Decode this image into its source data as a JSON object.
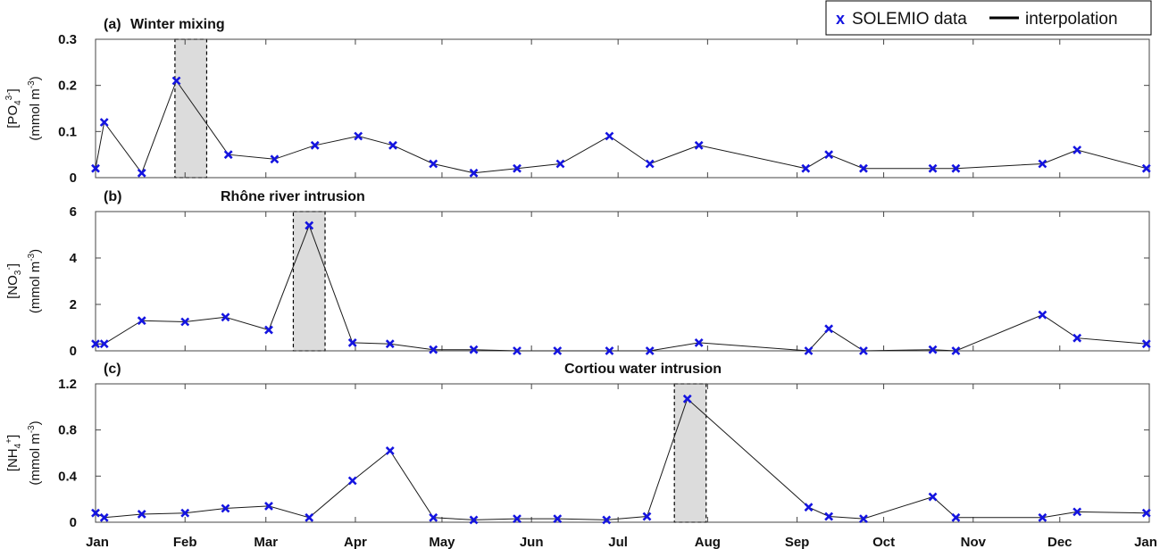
{
  "legend": {
    "marker_label": "x",
    "data_label": "SOLEMIO data",
    "line_label": "interpolation",
    "marker_color": "#1414e0",
    "line_color": "#000000"
  },
  "chart_data": [
    {
      "type": "line",
      "panel": "(a)",
      "title": "Winter mixing",
      "ylabel_main": "[PO",
      "ylabel_sub": "4",
      "ylabel_sup": "3-",
      "ylabel_close": "]",
      "ylabel_unit": "(mmol m",
      "ylabel_unit_sup": "-3",
      "ylabel_unit_close": ")",
      "ylim": [
        0,
        0.3
      ],
      "yticks": [
        0,
        0.1,
        0.2,
        0.3
      ],
      "ytick_labels": [
        "0",
        "0.1",
        "0.2",
        "0.3"
      ],
      "highlight_days": [
        27.5,
        38.5
      ],
      "x_days": [
        0,
        3,
        16,
        28,
        46,
        62,
        76,
        91,
        103,
        117,
        131,
        146,
        161,
        178,
        192,
        209,
        246,
        254,
        266,
        290,
        298,
        328,
        340,
        364
      ],
      "values": [
        0.02,
        0.12,
        0.01,
        0.21,
        0.05,
        0.04,
        0.07,
        0.09,
        0.07,
        0.03,
        0.01,
        0.02,
        0.03,
        0.09,
        0.03,
        0.07,
        0.02,
        0.05,
        0.02,
        0.02,
        0.02,
        0.03,
        0.06,
        0.02
      ]
    },
    {
      "type": "line",
      "panel": "(b)",
      "title": "Rhône river intrusion",
      "ylabel_main": "[NO",
      "ylabel_sub": "3",
      "ylabel_sup": "-",
      "ylabel_close": "]",
      "ylabel_unit": "(mmol m",
      "ylabel_unit_sup": "-3",
      "ylabel_unit_close": ")",
      "ylim": [
        0,
        6
      ],
      "yticks": [
        0,
        2,
        4,
        6
      ],
      "ytick_labels": [
        "0",
        "2",
        "4",
        "6"
      ],
      "highlight_days": [
        68.5,
        79.5
      ],
      "x_days": [
        0,
        3,
        16,
        31,
        45,
        60,
        74,
        89,
        102,
        117,
        131,
        146,
        160,
        178,
        192,
        209,
        247,
        254,
        266,
        290,
        298,
        328,
        340,
        364
      ],
      "values": [
        0.3,
        0.3,
        1.3,
        1.25,
        1.45,
        0.9,
        5.4,
        0.35,
        0.3,
        0.05,
        0.05,
        0.0,
        0.0,
        0.0,
        0.0,
        0.35,
        0.0,
        0.95,
        0.0,
        0.05,
        0.0,
        1.55,
        0.55,
        0.3
      ]
    },
    {
      "type": "line",
      "panel": "(c)",
      "title": "Cortiou water intrusion",
      "ylabel_main": "[NH",
      "ylabel_sub": "4",
      "ylabel_sup": "+",
      "ylabel_close": "]",
      "ylabel_unit": "(mmol m",
      "ylabel_unit_sup": "-3",
      "ylabel_unit_close": ")",
      "ylim": [
        0,
        1.2
      ],
      "yticks": [
        0,
        0.4,
        0.8,
        1.2
      ],
      "ytick_labels": [
        "0",
        "0.4",
        "0.8",
        "1.2"
      ],
      "highlight_days": [
        200.5,
        211.5
      ],
      "x_days": [
        0,
        3,
        16,
        31,
        45,
        60,
        74,
        89,
        102,
        117,
        131,
        146,
        160,
        177,
        191,
        205,
        247,
        254,
        266,
        290,
        298,
        328,
        340,
        364
      ],
      "values": [
        0.08,
        0.04,
        0.07,
        0.08,
        0.12,
        0.14,
        0.04,
        0.36,
        0.62,
        0.04,
        0.02,
        0.03,
        0.03,
        0.02,
        0.05,
        1.07,
        0.13,
        0.05,
        0.03,
        0.22,
        0.04,
        0.04,
        0.09,
        0.08
      ]
    }
  ],
  "x_axis": {
    "tick_labels": [
      "Jan",
      "Feb",
      "Mar",
      "Apr",
      "May",
      "Jun",
      "Jul",
      "Aug",
      "Sep",
      "Oct",
      "Nov",
      "Dec",
      "Jan"
    ],
    "tick_days": [
      0,
      31,
      59,
      90,
      120,
      151,
      181,
      212,
      243,
      273,
      304,
      334,
      365
    ],
    "range_days": [
      0,
      365
    ]
  }
}
